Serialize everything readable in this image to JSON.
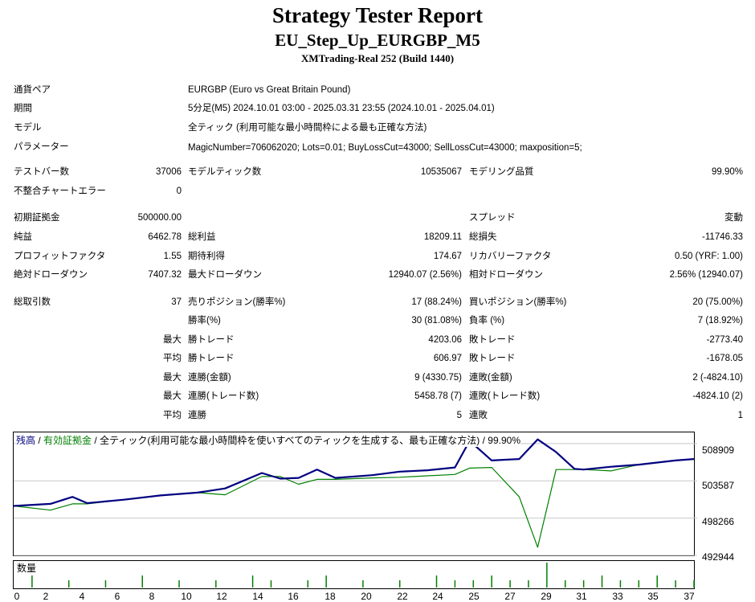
{
  "header": {
    "title": "Strategy Tester Report",
    "subtitle": "EU_Step_Up_EURGBP_M5",
    "server": "XMTrading-Real 252 (Build 1440)"
  },
  "info": {
    "pair_label": "通貨ペア",
    "pair_value": "EURGBP (Euro vs Great Britain Pound)",
    "period_label": "期間",
    "period_value": "5分足(M5) 2024.10.01 03:00 - 2025.03.31 23:55 (2024.10.01 - 2025.04.01)",
    "model_label": "モデル",
    "model_value": "全ティック (利用可能な最小時間枠による最も正確な方法)",
    "param_label": "パラメーター",
    "param_value": "MagicNumber=706062020; Lots=0.01; BuyLossCut=43000; SellLossCut=43000; maxposition=5;"
  },
  "stats": {
    "bars_label": "テストバー数",
    "bars_value": "37006",
    "ticks_label": "モデルティック数",
    "ticks_value": "10535067",
    "quality_label": "モデリング品質",
    "quality_value": "99.90%",
    "mismatch_label": "不整合チャートエラー",
    "mismatch_value": "0",
    "deposit_label": "初期証拠金",
    "deposit_value": "500000.00",
    "spread_label": "スプレッド",
    "spread_value": "変動",
    "net_label": "純益",
    "net_value": "6462.78",
    "gross_profit_label": "総利益",
    "gross_profit_value": "18209.11",
    "gross_loss_label": "総損失",
    "gross_loss_value": "-11746.33",
    "pf_label": "プロフィットファクタ",
    "pf_value": "1.55",
    "expected_label": "期待利得",
    "expected_value": "174.67",
    "recovery_label": "リカバリーファクタ",
    "recovery_value": "0.50 (YRF: 1.00)",
    "abs_dd_label": "絶対ドローダウン",
    "abs_dd_value": "7407.32",
    "max_dd_label": "最大ドローダウン",
    "max_dd_value": "12940.07 (2.56%)",
    "rel_dd_label": "相対ドローダウン",
    "rel_dd_value": "2.56% (12940.07)",
    "total_trades_label": "総取引数",
    "total_trades_value": "37",
    "short_label": "売りポジション(勝率%)",
    "short_value": "17 (88.24%)",
    "long_label": "買いポジション(勝率%)",
    "long_value": "20 (75.00%)",
    "win_rate_label": "勝率(%)",
    "win_rate_value": "30 (81.08%)",
    "loss_rate_label": "負率 (%)",
    "loss_rate_value": "7 (18.92%)",
    "max_label": "最大",
    "avg_label": "平均",
    "largest_win_label": "勝トレード",
    "largest_win_value": "4203.06",
    "largest_loss_label": "敗トレード",
    "largest_loss_value": "-2773.40",
    "avg_win_label": "勝トレード",
    "avg_win_value": "606.97",
    "avg_loss_label": "敗トレード",
    "avg_loss_value": "-1678.05",
    "max_cons_wins_money_label": "連勝(金額)",
    "max_cons_wins_money_value": "9 (4330.75)",
    "max_cons_losses_money_label": "連敗(金額)",
    "max_cons_losses_money_value": "2 (-4824.10)",
    "max_cons_profit_label": "連勝(トレード数)",
    "max_cons_profit_value": "5458.78 (7)",
    "max_cons_loss_label": "連敗(トレード数)",
    "max_cons_loss_value": "-4824.10 (2)",
    "avg_cons_wins_label": "連勝",
    "avg_cons_wins_value": "5",
    "avg_cons_losses_label": "連敗",
    "avg_cons_losses_value": "1"
  },
  "chart_title": {
    "balance": "残高",
    "sep1": " / ",
    "equity": "有効証拠金",
    "sep2": " / ",
    "rest": "全ティック(利用可能な最小時間枠を使いすべてのティックを生成する、最も正確な方法) / 99.90%"
  },
  "colors": {
    "balance": "#00007f",
    "equity": "#008000",
    "volume": "#008000"
  },
  "chart_data": {
    "type": "line",
    "y_ticks": [
      "508909",
      "503587",
      "498266",
      "492944"
    ],
    "ylim": [
      492944,
      510500
    ],
    "xlim": [
      0,
      37
    ],
    "x_ticks": [
      "0",
      "2",
      "4",
      "6",
      "8",
      "10",
      "12",
      "14",
      "16",
      "18",
      "20",
      "22",
      "24",
      "25",
      "27",
      "29",
      "31",
      "33",
      "35",
      "37"
    ],
    "volume_label": "数量",
    "series": [
      {
        "name": "残高",
        "x": [
          0,
          2,
          3.2,
          4,
          6,
          8,
          10,
          11.5,
          13.5,
          14.5,
          15.5,
          16.5,
          17.5,
          19.5,
          21,
          22.5,
          24,
          24.8,
          26,
          27.5,
          28.5,
          29.5,
          30.5,
          31,
          32.5,
          34,
          35,
          36,
          37
        ],
        "y": [
          500000,
          500300,
          501300,
          500400,
          500900,
          501500,
          501900,
          502500,
          504700,
          503900,
          504000,
          505200,
          504000,
          504400,
          504900,
          505100,
          505500,
          509300,
          506500,
          506700,
          509500,
          507700,
          505300,
          505200,
          505600,
          505900,
          506200,
          506500,
          506700
        ]
      },
      {
        "name": "有効証拠金",
        "x": [
          0,
          2,
          3.2,
          4,
          6,
          8,
          10,
          11.5,
          13.5,
          14.5,
          15.5,
          16.5,
          17.5,
          19.5,
          21,
          22.5,
          24,
          24.8,
          26,
          27.5,
          28.5,
          29.5,
          30.5,
          31,
          32.5,
          34,
          35,
          36,
          37
        ],
        "y": [
          500000,
          499400,
          500300,
          500300,
          500900,
          501500,
          501900,
          501600,
          504200,
          504200,
          503100,
          503800,
          503800,
          504000,
          504100,
          504300,
          504500,
          505400,
          505500,
          501300,
          494100,
          505200,
          505200,
          505200,
          505000,
          505900,
          506200,
          506500,
          506700
        ]
      }
    ],
    "volume_x": [
      1,
      3,
      5,
      7,
      9,
      11,
      13,
      14,
      16,
      17,
      19,
      21,
      23,
      24,
      25,
      26,
      27,
      28,
      29,
      30,
      31,
      32,
      33,
      34,
      35,
      36,
      37
    ]
  }
}
